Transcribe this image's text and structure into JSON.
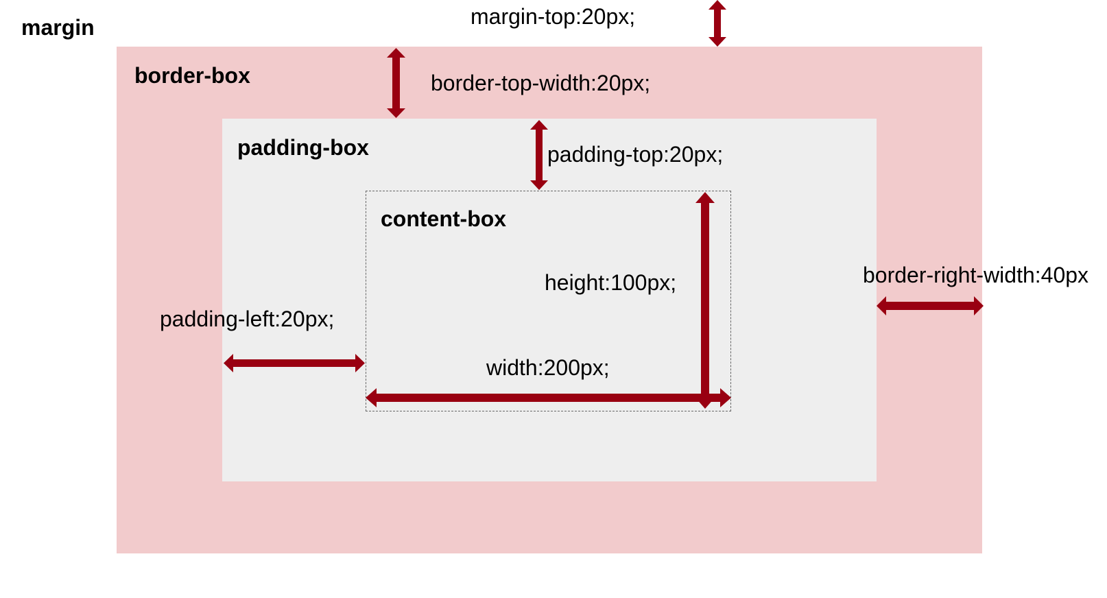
{
  "labels": {
    "margin": "margin",
    "border_box": "border-box",
    "padding_box": "padding-box",
    "content_box": "content-box"
  },
  "annotations": {
    "margin_top": "margin-top:20px;",
    "border_top_width": "border-top-width:20px;",
    "padding_top": "padding-top:20px;",
    "height": "height:100px;",
    "padding_left": "padding-left:20px;",
    "width": "width:200px;",
    "border_right_width": "border-right-width:40px"
  },
  "colors": {
    "border_box": "#f2cbcc",
    "padding_box": "#eeeeee",
    "arrow": "#990011",
    "content_outline": "#666666"
  }
}
